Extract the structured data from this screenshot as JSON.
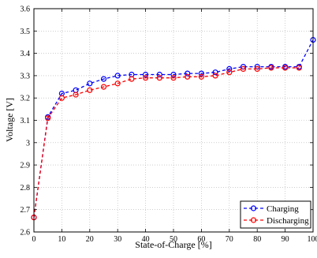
{
  "chart_data": {
    "type": "line",
    "title": "",
    "xlabel": "State-of-Charge [%]",
    "ylabel": "Voltage [V]",
    "xlim": [
      0,
      100
    ],
    "ylim": [
      2.6,
      3.6
    ],
    "x_ticks": [
      0,
      10,
      20,
      30,
      40,
      50,
      60,
      70,
      80,
      90,
      100
    ],
    "y_ticks": [
      2.6,
      2.7,
      2.8,
      2.9,
      3.0,
      3.1,
      3.2,
      3.3,
      3.4,
      3.5,
      3.6
    ],
    "x_tick_labels": [
      "0",
      "10",
      "20",
      "30",
      "40",
      "50",
      "60",
      "70",
      "80",
      "90",
      "100"
    ],
    "y_tick_labels": [
      "2.6",
      "2.7",
      "2.8",
      "2.9",
      "3",
      "3.1",
      "3.2",
      "3.3",
      "3.4",
      "3.5",
      "3.6"
    ],
    "grid": true,
    "grid_style": "dotted",
    "legend_position": "bottom-right",
    "series": [
      {
        "name": "Charging",
        "color": "#0000ff",
        "line_style": "dashed",
        "marker": "circle",
        "x": [
          0,
          5,
          10,
          15,
          20,
          25,
          30,
          35,
          40,
          45,
          50,
          55,
          60,
          65,
          70,
          75,
          80,
          85,
          90,
          95,
          100
        ],
        "y": [
          2.665,
          3.115,
          3.22,
          3.235,
          3.265,
          3.285,
          3.3,
          3.305,
          3.305,
          3.305,
          3.305,
          3.31,
          3.31,
          3.315,
          3.33,
          3.34,
          3.34,
          3.34,
          3.34,
          3.34,
          3.46
        ]
      },
      {
        "name": "Discharging",
        "color": "#ff0000",
        "line_style": "dashed",
        "marker": "circle",
        "x": [
          0,
          5,
          10,
          15,
          20,
          25,
          30,
          35,
          40,
          45,
          50,
          55,
          60,
          65,
          70,
          75,
          80,
          85,
          90,
          95
        ],
        "y": [
          2.665,
          3.11,
          3.2,
          3.215,
          3.235,
          3.25,
          3.265,
          3.285,
          3.29,
          3.29,
          3.29,
          3.295,
          3.295,
          3.3,
          3.315,
          3.33,
          3.33,
          3.335,
          3.335,
          3.335
        ]
      }
    ]
  }
}
